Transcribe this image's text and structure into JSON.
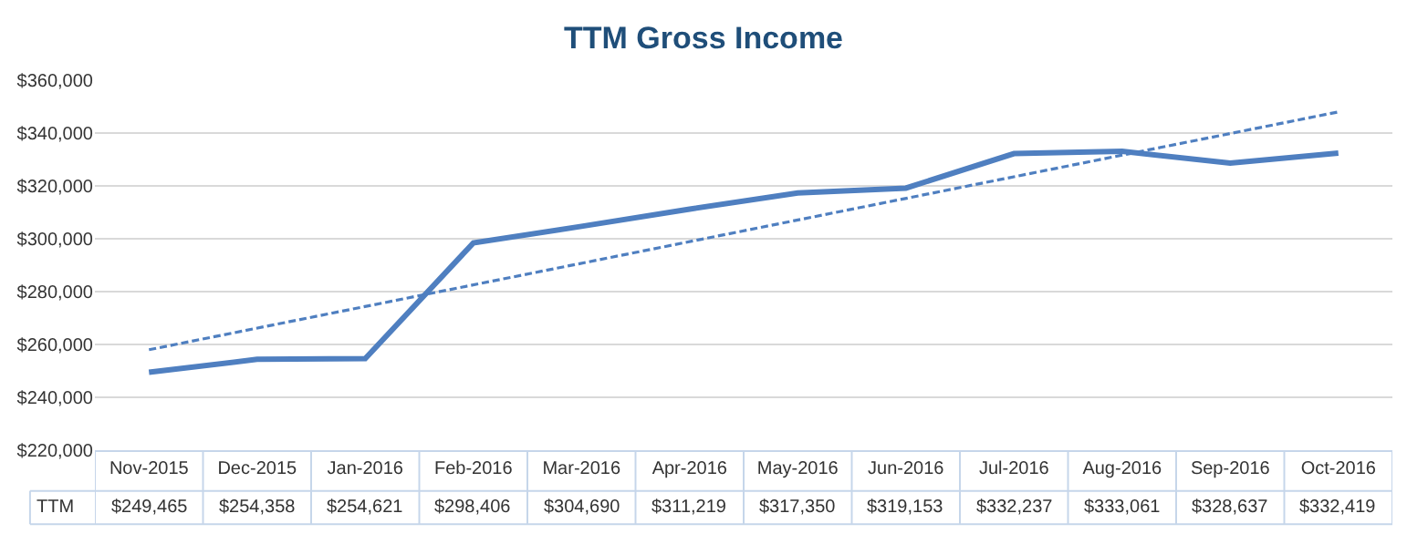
{
  "chart_data": {
    "type": "line",
    "title": "TTM Gross Income",
    "categories": [
      "Nov-2015",
      "Dec-2015",
      "Jan-2016",
      "Feb-2016",
      "Mar-2016",
      "Apr-2016",
      "May-2016",
      "Jun-2016",
      "Jul-2016",
      "Aug-2016",
      "Sep-2016",
      "Oct-2016"
    ],
    "series": [
      {
        "name": "TTM",
        "color": "#4f7fc0",
        "values": [
          249465,
          254358,
          254621,
          298406,
          304690,
          311219,
          317350,
          319153,
          332237,
          333061,
          328637,
          332419
        ],
        "value_labels": [
          "$249,465",
          "$254,358",
          "$254,621",
          "$298,406",
          "$304,690",
          "$311,219",
          "$317,350",
          "$319,153",
          "$332,237",
          "$333,061",
          "$328,637",
          "$332,419"
        ]
      },
      {
        "type": "line",
        "color": "#4f7fc0",
        "line_style": "dashed",
        "x": [
          "Nov-2015",
          "Oct-2016"
        ],
        "values": [
          258000,
          348000
        ]
      }
    ],
    "ylim": [
      220000,
      360000
    ],
    "yticks": [
      {
        "value": 220000,
        "label": "$220,000"
      },
      {
        "value": 240000,
        "label": "$240,000"
      },
      {
        "value": 260000,
        "label": "$260,000"
      },
      {
        "value": 280000,
        "label": "$280,000"
      },
      {
        "value": 300000,
        "label": "$300,000"
      },
      {
        "value": 320000,
        "label": "$320,000"
      },
      {
        "value": 340000,
        "label": "$340,000"
      },
      {
        "value": 360000,
        "label": "$360,000"
      }
    ],
    "grid": "y",
    "legend": false,
    "marker": "none",
    "line_style": "solid"
  }
}
